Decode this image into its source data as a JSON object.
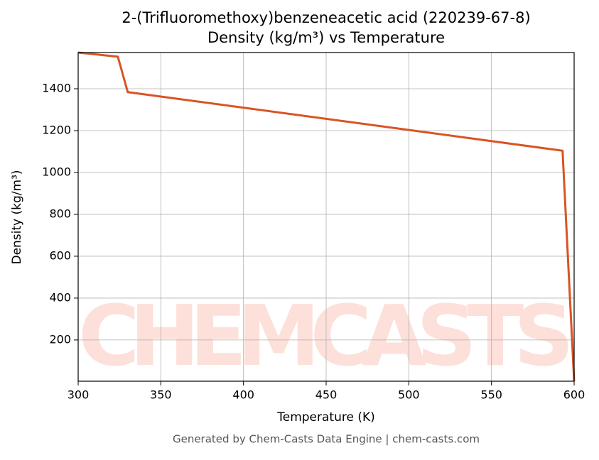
{
  "chart_data": {
    "type": "line",
    "title": [
      "2-(Trifluoromethoxy)benzeneacetic acid (220239-67-8)",
      "Density (kg/m³) vs Temperature"
    ],
    "x_label": "Temperature (K)",
    "y_label": "Density (kg/m³)",
    "x": [
      300,
      324,
      330,
      593,
      600
    ],
    "series": [
      {
        "name": "Density",
        "color": "#d95423",
        "values": [
          1573,
          1553,
          1384,
          1104,
          3
        ]
      }
    ],
    "xlim": [
      300,
      600
    ],
    "xticks": [
      300,
      350,
      400,
      450,
      500,
      550,
      600
    ],
    "ylim": [
      3,
      1573
    ],
    "yticks": [
      200,
      400,
      600,
      800,
      1000,
      1200,
      1400
    ],
    "grid": true,
    "watermark": "CHEMCASTS",
    "footer": "Generated by Chem-Casts Data Engine | chem-casts.com"
  }
}
